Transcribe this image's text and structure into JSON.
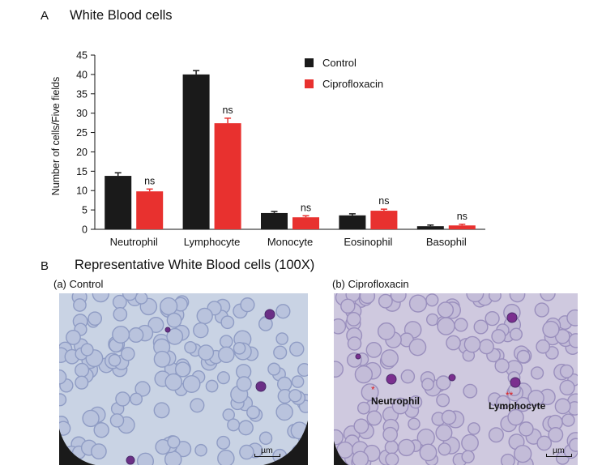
{
  "panel_a": {
    "letter": "A",
    "title": "White Blood cells"
  },
  "chart_data": {
    "type": "bar",
    "title": "White Blood cells",
    "xlabel": "",
    "ylabel": "Number of cells/Five fields",
    "ylim": [
      0,
      45
    ],
    "yticks": [
      0,
      5,
      10,
      15,
      20,
      25,
      30,
      35,
      40,
      45
    ],
    "categories": [
      "Neutrophil",
      "Lymphocyte",
      "Monocyte",
      "Eosinophil",
      "Basophil"
    ],
    "series": [
      {
        "name": "Control",
        "color": "#1a1a1a",
        "values": [
          13.8,
          40.0,
          4.2,
          3.6,
          0.8
        ],
        "errors": [
          0.8,
          1.0,
          0.4,
          0.4,
          0.3
        ]
      },
      {
        "name": "Ciprofloxacin",
        "color": "#e8312f",
        "values": [
          9.8,
          27.4,
          3.1,
          4.8,
          1.0
        ],
        "errors": [
          0.6,
          1.3,
          0.4,
          0.4,
          0.3
        ]
      }
    ],
    "significance": [
      "ns",
      "ns",
      "ns",
      "ns",
      "ns"
    ],
    "legend_position": "top-right",
    "grid": false
  },
  "panel_b": {
    "letter": "B",
    "title": "Representative White Blood cells (100X)",
    "images": [
      {
        "label": "(a) Control",
        "scale": "µm"
      },
      {
        "label": "(b)  Ciprofloxacin",
        "scale": "µm",
        "annotations": [
          {
            "marker": "*",
            "text": "Neutrophil"
          },
          {
            "marker": "**",
            "text": "Lymphocyte"
          }
        ]
      }
    ]
  }
}
